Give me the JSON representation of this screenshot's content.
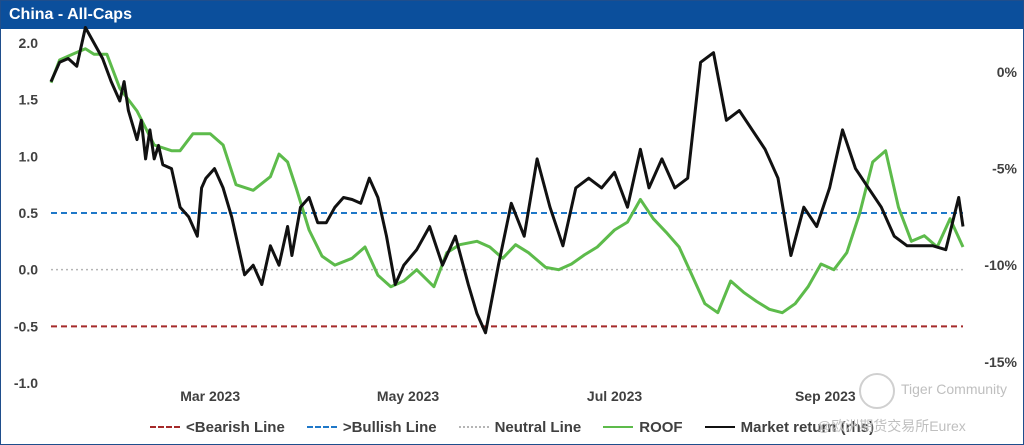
{
  "window": {
    "title": "China - All-Caps"
  },
  "colors": {
    "bearish": "#a52a2a",
    "bullish": "#1f78c8",
    "neutral": "#b5b5b5",
    "roof": "#5dbb4b",
    "market": "#111111"
  },
  "watermark": {
    "line1": "Tiger Community",
    "line2": "@欧洲期货交易所Eurex"
  },
  "chart_data": {
    "type": "line",
    "title": "China - All-Caps",
    "x_ticks": [
      "Mar 2023",
      "May 2023",
      "Jul 2023",
      "Sep 2023"
    ],
    "y_left": {
      "ticks": [
        "2.0",
        "1.5",
        "1.0",
        "0.5",
        "0.0",
        "-0.5",
        "-1.0"
      ],
      "range": [
        -1.0,
        2.0
      ]
    },
    "y_right": {
      "ticks": [
        "0%",
        "-5%",
        "-10%",
        "-15%"
      ],
      "range": [
        -16.1,
        1.5
      ]
    },
    "reference_lines": [
      {
        "name": "<Bearish Line",
        "value": -0.5,
        "style": "dashed",
        "color": "#a52a2a"
      },
      {
        "name": ">Bullish Line",
        "value": 0.5,
        "style": "dashed",
        "color": "#1f78c8"
      },
      {
        "name": "Neutral Line",
        "value": 0.0,
        "style": "dotted",
        "color": "#b5b5b5"
      }
    ],
    "legend_position": "bottom",
    "series": [
      {
        "name": "ROOF",
        "axis": "left",
        "color": "#5dbb4b",
        "x": [
          0,
          2,
          5,
          8,
          10,
          13,
          16,
          20,
          24,
          28,
          30,
          33,
          37,
          40,
          43,
          47,
          51,
          53,
          55,
          57,
          60,
          63,
          66,
          70,
          73,
          76,
          79,
          82,
          85,
          89,
          92,
          95,
          99,
          102,
          105,
          108,
          111,
          115,
          118,
          121,
          124,
          127,
          131,
          134,
          137,
          140,
          143,
          146,
          149,
          152,
          155,
          158,
          161,
          164,
          167,
          170,
          173,
          176,
          179,
          182,
          185,
          188,
          191,
          194,
          197,
          200,
          203,
          206,
          209,
          212
        ],
        "y": [
          1.65,
          1.85,
          1.9,
          1.95,
          1.9,
          1.9,
          1.6,
          1.4,
          1.1,
          1.05,
          1.05,
          1.2,
          1.2,
          1.1,
          0.75,
          0.7,
          0.82,
          1.02,
          0.95,
          0.72,
          0.35,
          0.12,
          0.04,
          0.1,
          0.2,
          -0.05,
          -0.15,
          -0.1,
          0.0,
          -0.15,
          0.15,
          0.22,
          0.25,
          0.2,
          0.1,
          0.22,
          0.15,
          0.02,
          0.0,
          0.05,
          0.13,
          0.2,
          0.35,
          0.42,
          0.62,
          0.45,
          0.33,
          0.2,
          -0.05,
          -0.3,
          -0.38,
          -0.1,
          -0.2,
          -0.28,
          -0.35,
          -0.38,
          -0.3,
          -0.15,
          0.05,
          0.0,
          0.15,
          0.5,
          0.95,
          1.05,
          0.55,
          0.25,
          0.3,
          0.2,
          0.45,
          0.2
        ]
      },
      {
        "name": "Market return (rhs)",
        "axis": "right",
        "color": "#111111",
        "x": [
          0,
          2,
          4,
          6,
          8,
          10,
          12,
          14,
          16,
          17,
          18,
          20,
          21,
          22,
          23,
          24,
          25,
          26,
          28,
          30,
          32,
          34,
          35,
          36,
          38,
          40,
          42,
          45,
          47,
          49,
          51,
          53,
          55,
          56,
          58,
          60,
          62,
          64,
          66,
          68,
          70,
          72,
          74,
          76,
          78,
          80,
          82,
          85,
          88,
          91,
          94,
          97,
          99,
          101,
          104,
          107,
          110,
          113,
          116,
          119,
          122,
          125,
          128,
          131,
          134,
          137,
          139,
          142,
          145,
          148,
          151,
          154,
          157,
          160,
          163,
          166,
          169,
          172,
          175,
          178,
          181,
          184,
          187,
          190,
          193,
          196,
          199,
          202,
          205,
          208,
          211,
          212
        ],
        "y": [
          -0.5,
          0.5,
          0.7,
          0.3,
          2.3,
          1.5,
          0.7,
          -0.5,
          -1.5,
          -0.5,
          -2.0,
          -3.5,
          -2.5,
          -4.5,
          -3.0,
          -4.5,
          -3.8,
          -4.8,
          -5.0,
          -7.0,
          -7.5,
          -8.5,
          -6.0,
          -5.5,
          -5.0,
          -6.0,
          -7.5,
          -10.5,
          -10.0,
          -11.0,
          -9.0,
          -10.0,
          -8.0,
          -9.5,
          -7.0,
          -6.5,
          -7.8,
          -7.8,
          -7.0,
          -6.5,
          -6.6,
          -6.8,
          -5.5,
          -6.5,
          -8.5,
          -11.0,
          -10.0,
          -9.2,
          -8.0,
          -10.0,
          -8.5,
          -11.0,
          -12.5,
          -13.5,
          -10.0,
          -6.8,
          -8.5,
          -4.5,
          -7.0,
          -9.0,
          -6.0,
          -5.5,
          -6.0,
          -5.2,
          -7.0,
          -4.0,
          -6.0,
          -4.5,
          -6.0,
          -5.5,
          0.5,
          1.0,
          -2.5,
          -2.0,
          -3.0,
          -4.0,
          -5.5,
          -9.5,
          -7.0,
          -8.0,
          -6.0,
          -3.0,
          -5.0,
          -6.0,
          -7.0,
          -8.5,
          -9.0,
          -9.0,
          -9.0,
          -9.2,
          -6.5,
          -8.0
        ]
      }
    ]
  },
  "legend": [
    {
      "label": "<Bearish Line",
      "color": "#a52a2a",
      "style": "dashed"
    },
    {
      "label": ">Bullish Line",
      "color": "#1f78c8",
      "style": "dashed"
    },
    {
      "label": "Neutral Line",
      "color": "#b5b5b5",
      "style": "dotted"
    },
    {
      "label": "ROOF",
      "color": "#5dbb4b",
      "style": "solid"
    },
    {
      "label": "Market return (rhs)",
      "color": "#111111",
      "style": "solid"
    }
  ]
}
